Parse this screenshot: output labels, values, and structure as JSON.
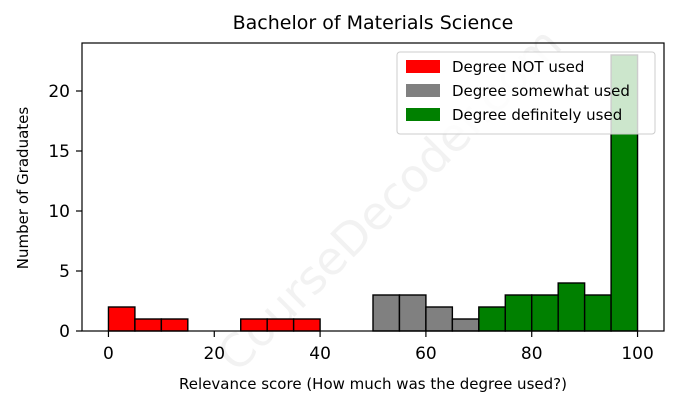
{
  "chart_data": {
    "type": "bar",
    "title": "Bachelor of Materials Science",
    "xlabel": "Relevance score (How much was the degree used?)",
    "ylabel": "Number of Graduates",
    "xlim": [
      -5,
      105
    ],
    "ylim": [
      0,
      24
    ],
    "xticks": [
      0,
      20,
      40,
      60,
      80,
      100
    ],
    "yticks": [
      0,
      5,
      10,
      15,
      20
    ],
    "bin_width": 5,
    "legend_position": "top-right",
    "grid": false,
    "series": [
      {
        "name": "Degree NOT used",
        "color": "#ff0000",
        "bins": [
          [
            0,
            2
          ],
          [
            5,
            1
          ],
          [
            10,
            1
          ],
          [
            15,
            0
          ],
          [
            20,
            0
          ],
          [
            25,
            1
          ],
          [
            30,
            1
          ],
          [
            35,
            1
          ],
          [
            40,
            0
          ],
          [
            45,
            0
          ]
        ]
      },
      {
        "name": "Degree somewhat used",
        "color": "#808080",
        "bins": [
          [
            50,
            3
          ],
          [
            55,
            3
          ],
          [
            60,
            2
          ],
          [
            65,
            1
          ]
        ]
      },
      {
        "name": "Degree definitely used",
        "color": "#008000",
        "bins": [
          [
            70,
            2
          ],
          [
            75,
            3
          ],
          [
            80,
            3
          ],
          [
            85,
            4
          ],
          [
            90,
            3
          ],
          [
            95,
            23
          ]
        ]
      }
    ],
    "watermark": "CourseDecoder.com"
  }
}
